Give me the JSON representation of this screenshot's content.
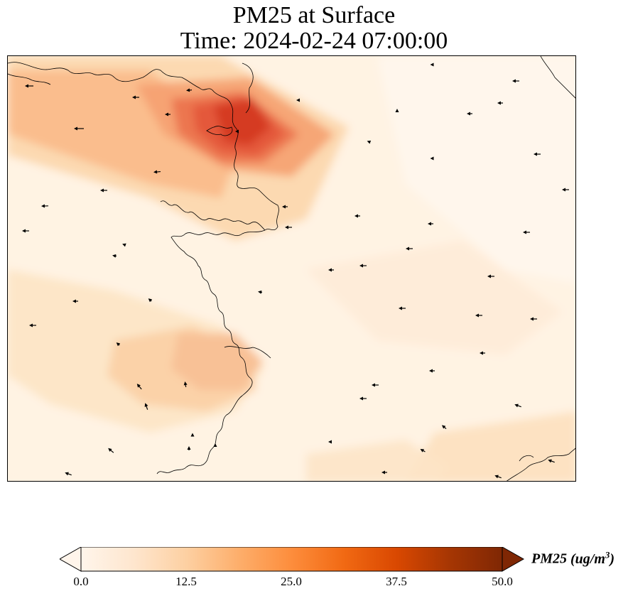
{
  "title": {
    "line1": "PM25 at Surface",
    "line2": "Time: 2024-02-24 07:00:00"
  },
  "colorbar": {
    "variable": "PM25",
    "unit_prefix": "(ug/m",
    "unit_exp": "3",
    "unit_suffix": ")",
    "ticks": [
      "0.0",
      "12.5",
      "25.0",
      "37.5",
      "50.0"
    ],
    "vmin": 0,
    "vmax": 50,
    "extend": "both",
    "colormap": [
      "#fff5eb",
      "#fee6ce",
      "#fdd0a2",
      "#fdae6b",
      "#fd8d3c",
      "#f16913",
      "#d94801",
      "#a63603",
      "#7f2704"
    ]
  },
  "colors": {
    "background": "#fff3e3",
    "hotspot": "#d53a22",
    "coastline": "#000000",
    "wind_arrow": "#000000"
  },
  "map": {
    "features": [
      "coastline",
      "wind-vectors",
      "pm25-field"
    ],
    "hotspot_peak_approx": 42
  }
}
